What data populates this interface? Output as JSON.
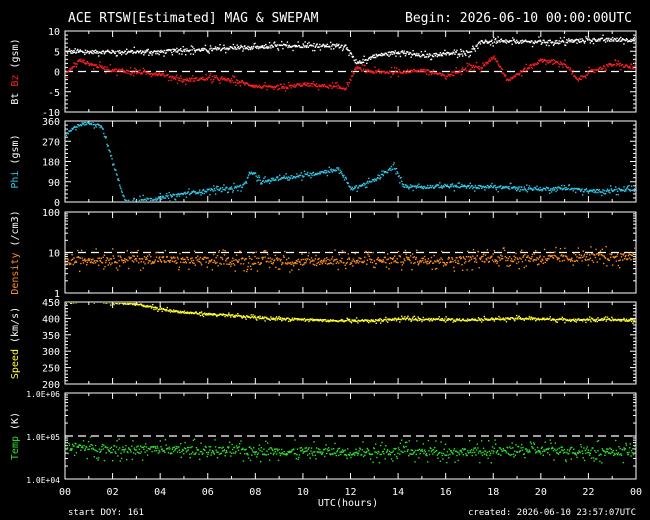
{
  "header": {
    "title": "ACE RTSW[Estimated] MAG & SWEPAM",
    "begin": "Begin: 2026-06-10 00:00:00UTC"
  },
  "footer": {
    "start_doy": "start DOY: 161",
    "created": "created: 2026-06-10 23:57:07UTC"
  },
  "colors": {
    "bt": "#ffffff",
    "bz": "#ff2020",
    "phi": "#30c8e8",
    "density": "#ff9020",
    "speed": "#ffff30",
    "temp": "#30e030"
  },
  "chart_data": {
    "type": "scatter",
    "x_axis": {
      "label": "UTC(hours)",
      "range": [
        0,
        24
      ],
      "ticks": [
        "00",
        "02",
        "04",
        "06",
        "08",
        "10",
        "12",
        "14",
        "16",
        "18",
        "20",
        "22",
        "00"
      ]
    },
    "panels": [
      {
        "id": "mag",
        "ylabel_parts": [
          {
            "text": "Bt",
            "color": "#ffffff"
          },
          {
            "text": " Bz",
            "color": "#ff2020"
          },
          {
            "text": " (gsm)",
            "color": "#ffffff"
          }
        ],
        "ylim": [
          -10,
          10
        ],
        "ticks": [
          "10",
          "5",
          "0",
          "-5",
          "-10"
        ],
        "reference_lines": [
          0
        ],
        "series": [
          {
            "name": "Bt",
            "color": "#ffffff",
            "x": [
              0,
              1,
              2,
              3,
              4,
              5,
              6,
              7,
              8,
              9,
              10,
              11,
              11.8,
              12.2,
              13,
              14,
              15,
              16,
              17,
              17.5,
              18,
              19,
              20,
              21,
              22,
              23,
              24
            ],
            "y": [
              5,
              5,
              5,
              5,
              5,
              5.5,
              5.5,
              6,
              6,
              6.5,
              6.5,
              6.5,
              6.5,
              2,
              4,
              5,
              4,
              4.5,
              5,
              7.5,
              7.5,
              7.5,
              7.5,
              7.5,
              8,
              8,
              8
            ]
          },
          {
            "name": "Bz",
            "color": "#ff2020",
            "x": [
              0,
              0.6,
              1,
              2,
              3,
              4,
              5,
              6,
              7,
              8,
              9,
              10,
              11,
              11.8,
              12.2,
              13,
              14,
              15,
              16,
              17,
              17.5,
              18,
              18.6,
              19,
              20,
              21,
              21.5,
              22,
              23,
              24
            ],
            "y": [
              -0.5,
              3,
              2,
              0.5,
              0,
              -0.5,
              -2,
              -1.5,
              -2,
              -3.5,
              -4,
              -3,
              -3.5,
              -4,
              1,
              0,
              0,
              0.5,
              -1,
              1.5,
              1,
              4,
              -2,
              -0.5,
              3,
              2,
              -2,
              0,
              2,
              1
            ]
          }
        ]
      },
      {
        "id": "phi",
        "ylabel_parts": [
          {
            "text": "Phi",
            "color": "#30c8e8"
          },
          {
            "text": " (gsm)",
            "color": "#ffffff"
          }
        ],
        "ylim": [
          0,
          360
        ],
        "ticks": [
          "360",
          "270",
          "180",
          "90",
          "0"
        ],
        "series": [
          {
            "name": "Phi",
            "color": "#30c8e8",
            "x": [
              0,
              0.5,
              1,
              1.5,
              2.5,
              3,
              4,
              5,
              6,
              7,
              7.5,
              7.8,
              8.2,
              9,
              10,
              11,
              11.5,
              12,
              13,
              13.8,
              14.2,
              15,
              16,
              17,
              18,
              19,
              20,
              21,
              22,
              23,
              24
            ],
            "y": [
              300,
              345,
              355,
              345,
              5,
              10,
              20,
              40,
              55,
              65,
              75,
              140,
              90,
              110,
              120,
              140,
              150,
              60,
              100,
              160,
              75,
              70,
              75,
              70,
              70,
              65,
              60,
              65,
              50,
              55,
              55
            ]
          }
        ]
      },
      {
        "id": "density",
        "ylabel_parts": [
          {
            "text": "Density",
            "color": "#ff9020"
          },
          {
            "text": " (/cm3)",
            "color": "#ffffff"
          }
        ],
        "ylim": [
          1,
          100
        ],
        "scale": "log",
        "ticks": [
          "100",
          "10",
          "1"
        ],
        "reference_lines": [
          10
        ],
        "series": [
          {
            "name": "Density",
            "color": "#ff9020",
            "x": [
              0,
              1,
              2,
              3,
              4,
              5,
              6,
              7,
              8,
              9,
              10,
              11,
              12,
              13,
              14,
              15,
              16,
              17,
              18,
              19,
              20,
              21,
              22,
              23,
              24
            ],
            "y": [
              6,
              7,
              7,
              7,
              7,
              6.5,
              6.5,
              6.5,
              6.5,
              6.5,
              6,
              6.5,
              6.5,
              6.5,
              7,
              7,
              6.5,
              7,
              7.5,
              7.5,
              7.5,
              7.5,
              8,
              8,
              8
            ]
          }
        ]
      },
      {
        "id": "speed",
        "ylabel_parts": [
          {
            "text": "Speed",
            "color": "#ffff30"
          },
          {
            "text": " (km/s)",
            "color": "#ffffff"
          }
        ],
        "ylim": [
          200,
          450
        ],
        "ticks": [
          "450",
          "400",
          "350",
          "300",
          "250",
          "200"
        ],
        "series": [
          {
            "name": "Speed",
            "color": "#ffff30",
            "x": [
              0,
              1,
              2,
              3,
              4,
              5,
              6,
              7,
              8,
              9,
              10,
              11,
              12,
              13,
              14,
              15,
              16,
              17,
              18,
              19,
              20,
              21,
              22,
              23,
              24
            ],
            "y": [
              450,
              455,
              450,
              445,
              430,
              420,
              415,
              410,
              405,
              400,
              400,
              395,
              395,
              395,
              400,
              400,
              398,
              398,
              400,
              402,
              400,
              398,
              398,
              398,
              395
            ]
          }
        ]
      },
      {
        "id": "temp",
        "ylabel_parts": [
          {
            "text": "Temp",
            "color": "#30e030"
          },
          {
            "text": " (K)",
            "color": "#ffffff"
          }
        ],
        "ylim": [
          10000,
          1000000
        ],
        "scale": "log",
        "ticks": [
          "1.0E+06",
          "1.0E+05",
          "1.0E+04"
        ],
        "reference_lines": [
          100000
        ],
        "series": [
          {
            "name": "Temp",
            "color": "#30e030",
            "x": [
              0,
              1,
              2,
              3,
              4,
              5,
              6,
              7,
              8,
              9,
              10,
              11,
              12,
              13,
              14,
              15,
              16,
              17,
              18,
              19,
              20,
              21,
              22,
              23,
              24
            ],
            "y": [
              60000,
              55000,
              50000,
              50000,
              50000,
              48000,
              48000,
              47000,
              47000,
              45000,
              45000,
              45000,
              44000,
              45000,
              45000,
              45000,
              45000,
              45000,
              45000,
              48000,
              48000,
              48000,
              45000,
              45000,
              45000
            ]
          }
        ]
      }
    ]
  }
}
